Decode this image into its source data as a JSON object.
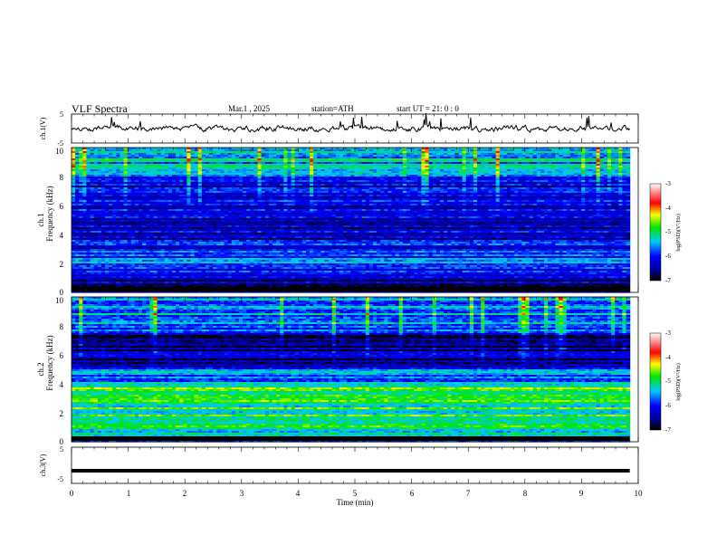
{
  "header": {
    "title": "VLF  Spectra",
    "date": "Mar.1  , 2025",
    "station": "station=ATH",
    "start": "start  UT  =    21: 0  : 0"
  },
  "panels": {
    "ch1_waveform": {
      "ylabel": "ch.1(V)",
      "ytick_labels": [
        "5",
        "-5"
      ]
    },
    "ch1_spectrogram": {
      "ylabel_line1": "ch.1",
      "ylabel_line2": "Frequency  (kHz)",
      "ytick_labels": [
        "0",
        "2",
        "4",
        "6",
        "8",
        "10"
      ]
    },
    "ch2_spectrogram": {
      "ylabel_line1": "ch.2",
      "ylabel_line2": "Frequency  (kHz)",
      "ytick_labels": [
        "0",
        "2",
        "4",
        "6",
        "8",
        "10"
      ]
    },
    "ch3_waveform": {
      "ylabel": "ch.3(V)",
      "ytick_labels": [
        "5",
        "-5"
      ]
    }
  },
  "xaxis": {
    "label": "Time  (min)",
    "tick_labels": [
      "0",
      "1",
      "2",
      "3",
      "4",
      "5",
      "6",
      "7",
      "8",
      "9",
      "10"
    ]
  },
  "colorbar": {
    "label": "log(PSD)(V²/Hz)",
    "tick_labels": [
      "-3",
      "-4",
      "-5",
      "-6",
      "-7"
    ]
  },
  "colors": {
    "low": "#000000",
    "mid_low": "#0000c8",
    "mid": "#00c8ff",
    "mid_high": "#00e600",
    "high": "#ffff00",
    "higher": "#ff0000",
    "top": "#ffffff"
  },
  "chart_data": [
    {
      "type": "line",
      "title": "ch.1 waveform",
      "xlabel": "Time (min)",
      "ylabel": "ch.1(V)",
      "xlim": [
        0,
        10
      ],
      "ylim": [
        -5,
        5
      ],
      "data_extent_min": 9.85,
      "series": [
        {
          "values_summary": "noisy signal fluctuating around 0 V, mostly within -1.5 to +1.5 V, occasional spikes to about +4 V"
        }
      ]
    },
    {
      "type": "heatmap",
      "title": "ch.1 spectrogram",
      "xlabel": "Time (min)",
      "ylabel": "Frequency (kHz)",
      "xlim": [
        0,
        10
      ],
      "ylim": [
        0,
        10
      ],
      "color_scale": [
        -7,
        -3
      ],
      "log_psd_bands": [
        {
          "freq_khz": [
            0,
            1
          ],
          "level": -6.5
        },
        {
          "freq_khz": [
            1,
            2
          ],
          "level": -6.0
        },
        {
          "freq_khz": [
            2,
            2.4
          ],
          "level": -5.2
        },
        {
          "freq_khz": [
            2.4,
            3.5
          ],
          "level": -6.0
        },
        {
          "freq_khz": [
            3.5,
            6
          ],
          "level": -6.3
        },
        {
          "freq_khz": [
            6,
            8
          ],
          "level": -6.2
        },
        {
          "freq_khz": [
            8,
            10
          ],
          "level": -5.4
        }
      ]
    },
    {
      "type": "heatmap",
      "title": "ch.2 spectrogram",
      "xlabel": "Time (min)",
      "ylabel": "Frequency (kHz)",
      "xlim": [
        0,
        10
      ],
      "ylim": [
        0,
        10
      ],
      "color_scale": [
        -7,
        -3
      ],
      "log_psd_bands": [
        {
          "freq_khz": [
            0,
            1
          ],
          "level": -5.4
        },
        {
          "freq_khz": [
            1,
            3
          ],
          "level": -5.0
        },
        {
          "freq_khz": [
            3,
            3.8
          ],
          "level": -4.8
        },
        {
          "freq_khz": [
            3.8,
            5
          ],
          "level": -5.6
        },
        {
          "freq_khz": [
            5,
            7.5
          ],
          "level": -6.5
        },
        {
          "freq_khz": [
            7.5,
            10
          ],
          "level": -5.6
        }
      ]
    },
    {
      "type": "line",
      "title": "ch.3 waveform",
      "xlabel": "Time (min)",
      "ylabel": "ch.3(V)",
      "xlim": [
        0,
        10
      ],
      "ylim": [
        -5,
        5
      ],
      "data_extent_min": 9.85,
      "series": [
        {
          "values_summary": "flat constant signal near -1.5 V"
        }
      ]
    }
  ]
}
